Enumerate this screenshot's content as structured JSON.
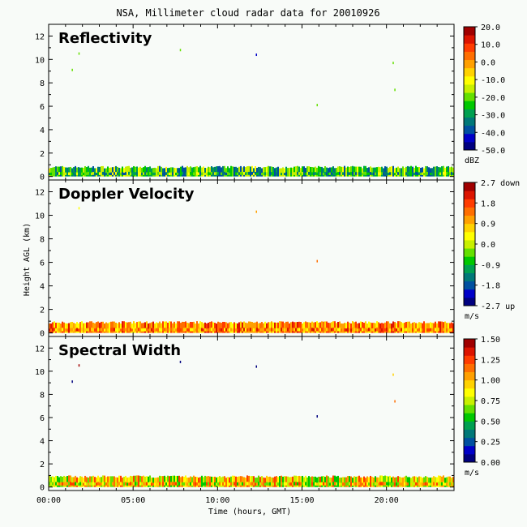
{
  "title": "NSA, Millimeter cloud radar data for 20010926",
  "xlabel": "Time (hours, GMT)",
  "ylabel": "Height AGL (km)",
  "colors": {
    "background": "#f8fbf8",
    "axis": "#000000",
    "colormap": [
      "#00007f",
      "#0000c8",
      "#0050a0",
      "#007878",
      "#00a050",
      "#00c800",
      "#64e000",
      "#c8f000",
      "#ffff00",
      "#ffd200",
      "#ffa000",
      "#ff6e00",
      "#ff3c00",
      "#dc1400",
      "#a00000"
    ]
  },
  "chart_data": [
    {
      "type": "heatmap",
      "title": "Reflectivity",
      "x_ticks": [
        "00:00",
        "05:00",
        "10:00",
        "15:00",
        "20:00"
      ],
      "x_tick_values": [
        0,
        5,
        10,
        15,
        20
      ],
      "xlim": [
        0,
        24
      ],
      "y_ticks": [
        "0",
        "2",
        "4",
        "6",
        "8",
        "10",
        "12"
      ],
      "y_tick_values": [
        0,
        2,
        4,
        6,
        8,
        10,
        12
      ],
      "ylim": [
        -0.3,
        13
      ],
      "colorbar": {
        "labels": [
          "20.0",
          "10.0",
          "0.0",
          "-10.0",
          "-20.0",
          "-30.0",
          "-40.0",
          "-50.0"
        ],
        "range": [
          -50,
          20
        ],
        "unit": "dBZ"
      },
      "layer": {
        "bottom_km": 0.0,
        "top_km": 0.8,
        "value_range": [
          -40,
          -10
        ]
      },
      "speckles": [
        {
          "x": 1.8,
          "y": 10.5,
          "value": -20
        },
        {
          "x": 1.4,
          "y": 9.1,
          "value": -20
        },
        {
          "x": 7.8,
          "y": 10.8,
          "value": -20
        },
        {
          "x": 12.3,
          "y": 10.4,
          "value": -45
        },
        {
          "x": 15.9,
          "y": 6.1,
          "value": -20
        },
        {
          "x": 20.4,
          "y": 9.7,
          "value": -20
        },
        {
          "x": 20.5,
          "y": 7.4,
          "value": -20
        }
      ]
    },
    {
      "type": "heatmap",
      "title": "Doppler Velocity",
      "x_ticks": [
        "00:00",
        "05:00",
        "10:00",
        "15:00",
        "20:00"
      ],
      "x_tick_values": [
        0,
        5,
        10,
        15,
        20
      ],
      "xlim": [
        0,
        24
      ],
      "y_ticks": [
        "0",
        "2",
        "4",
        "6",
        "8",
        "10",
        "12"
      ],
      "y_tick_values": [
        0,
        2,
        4,
        6,
        8,
        10,
        12
      ],
      "ylim": [
        -0.3,
        13
      ],
      "colorbar": {
        "labels": [
          "2.7 down",
          "1.8",
          "0.9",
          "0.0",
          "-0.9",
          "-1.8",
          "-2.7 up"
        ],
        "range": [
          -2.7,
          2.7
        ],
        "unit": "m/s"
      },
      "layer": {
        "bottom_km": 0.0,
        "top_km": 0.9,
        "value_range": [
          0.3,
          2.2
        ]
      },
      "speckles": [
        {
          "x": 1.8,
          "y": 10.6,
          "value": 0.5
        },
        {
          "x": 12.3,
          "y": 10.3,
          "value": 1.2
        },
        {
          "x": 15.9,
          "y": 6.1,
          "value": 1.3
        }
      ]
    },
    {
      "type": "heatmap",
      "title": "Spectral Width",
      "x_ticks": [
        "00:00",
        "05:00",
        "10:00",
        "15:00",
        "20:00"
      ],
      "x_tick_values": [
        0,
        5,
        10,
        15,
        20
      ],
      "xlim": [
        0,
        24
      ],
      "y_ticks": [
        "0",
        "2",
        "4",
        "6",
        "8",
        "10",
        "12"
      ],
      "y_tick_values": [
        0,
        2,
        4,
        6,
        8,
        10,
        12
      ],
      "ylim": [
        -0.3,
        13
      ],
      "colorbar": {
        "labels": [
          "1.50",
          "1.25",
          "1.00",
          "0.75",
          "0.50",
          "0.25",
          "0.00"
        ],
        "range": [
          0,
          1.5
        ],
        "unit": "m/s"
      },
      "layer": {
        "bottom_km": 0.0,
        "top_km": 0.9,
        "value_range": [
          0.5,
          1.3
        ]
      },
      "speckles": [
        {
          "x": 1.8,
          "y": 10.5,
          "value": 1.45
        },
        {
          "x": 1.4,
          "y": 9.1,
          "value": 0.05
        },
        {
          "x": 7.8,
          "y": 10.8,
          "value": 0.05
        },
        {
          "x": 12.3,
          "y": 10.4,
          "value": 0.05
        },
        {
          "x": 15.9,
          "y": 6.1,
          "value": 0.05
        },
        {
          "x": 20.4,
          "y": 9.7,
          "value": 0.9
        },
        {
          "x": 20.5,
          "y": 7.4,
          "value": 1.1
        }
      ]
    }
  ]
}
